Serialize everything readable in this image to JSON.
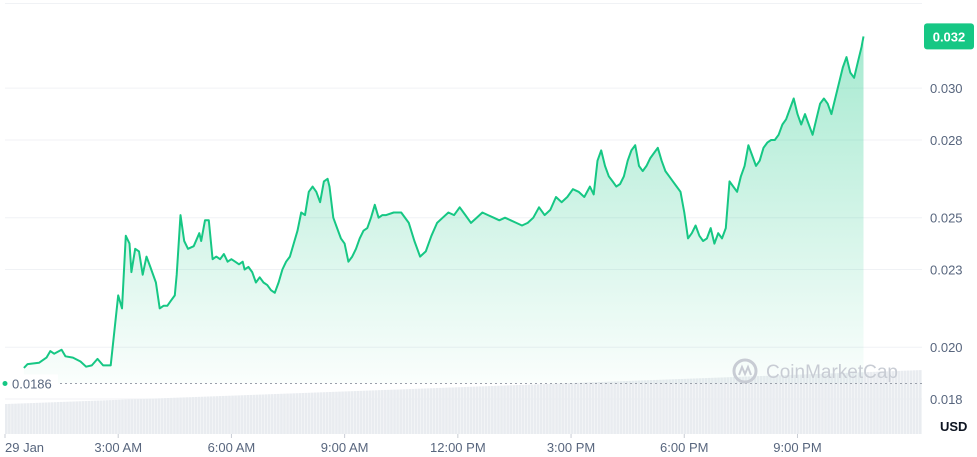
{
  "chart_data": {
    "type": "area",
    "x_ticks": [
      "29 Jan",
      "3:00 AM",
      "6:00 AM",
      "9:00 AM",
      "12:00 PM",
      "3:00 PM",
      "6:00 PM",
      "9:00 PM"
    ],
    "y_ticks": [
      "0.018",
      "0.020",
      "0.023",
      "0.025",
      "0.028",
      "0.030"
    ],
    "y_unit": "USD",
    "ylim": [
      0.01665,
      0.03325
    ],
    "x_range_hours": [
      0,
      24.3
    ],
    "open_price": 0.0186,
    "open_price_label": "0.0186",
    "current_price_label": "0.032",
    "watermark": "CoinMarketCap",
    "grid": "horizontal",
    "colors": {
      "line": "#16c784",
      "fill": "#16c784",
      "reference": "#9aa0ab",
      "volume": "#e9ecf0",
      "grid": "#f0f2f5"
    },
    "price_series": [
      [
        0.5,
        0.0192
      ],
      [
        0.6,
        0.01935
      ],
      [
        0.9,
        0.0194
      ],
      [
        1.1,
        0.0196
      ],
      [
        1.2,
        0.01985
      ],
      [
        1.3,
        0.01975
      ],
      [
        1.5,
        0.0199
      ],
      [
        1.6,
        0.01965
      ],
      [
        1.8,
        0.0196
      ],
      [
        2.0,
        0.01945
      ],
      [
        2.15,
        0.01925
      ],
      [
        2.3,
        0.0193
      ],
      [
        2.45,
        0.01955
      ],
      [
        2.6,
        0.0193
      ],
      [
        2.8,
        0.0193
      ],
      [
        3.0,
        0.022
      ],
      [
        3.1,
        0.0215
      ],
      [
        3.2,
        0.0243
      ],
      [
        3.3,
        0.024
      ],
      [
        3.35,
        0.0229
      ],
      [
        3.45,
        0.0238
      ],
      [
        3.55,
        0.0237
      ],
      [
        3.65,
        0.0228
      ],
      [
        3.75,
        0.0235
      ],
      [
        3.85,
        0.0231
      ],
      [
        4.0,
        0.0225
      ],
      [
        4.1,
        0.0215
      ],
      [
        4.2,
        0.0216
      ],
      [
        4.3,
        0.0216
      ],
      [
        4.4,
        0.0218
      ],
      [
        4.5,
        0.022
      ],
      [
        4.55,
        0.0228
      ],
      [
        4.65,
        0.0251
      ],
      [
        4.75,
        0.0241
      ],
      [
        4.85,
        0.0238
      ],
      [
        5.0,
        0.0239
      ],
      [
        5.15,
        0.0244
      ],
      [
        5.2,
        0.0241
      ],
      [
        5.3,
        0.0249
      ],
      [
        5.4,
        0.0249
      ],
      [
        5.5,
        0.0234
      ],
      [
        5.6,
        0.0235
      ],
      [
        5.7,
        0.0234
      ],
      [
        5.8,
        0.0236
      ],
      [
        5.9,
        0.0233
      ],
      [
        6.0,
        0.0234
      ],
      [
        6.1,
        0.0233
      ],
      [
        6.2,
        0.0232
      ],
      [
        6.3,
        0.0233
      ],
      [
        6.35,
        0.023
      ],
      [
        6.45,
        0.0231
      ],
      [
        6.55,
        0.0229
      ],
      [
        6.65,
        0.0225
      ],
      [
        6.75,
        0.0227
      ],
      [
        6.85,
        0.0225
      ],
      [
        6.95,
        0.0224
      ],
      [
        7.05,
        0.0222
      ],
      [
        7.15,
        0.0221
      ],
      [
        7.25,
        0.0225
      ],
      [
        7.35,
        0.023
      ],
      [
        7.45,
        0.0233
      ],
      [
        7.55,
        0.0235
      ],
      [
        7.65,
        0.024
      ],
      [
        7.75,
        0.0245
      ],
      [
        7.85,
        0.0252
      ],
      [
        7.95,
        0.0251
      ],
      [
        8.05,
        0.026
      ],
      [
        8.15,
        0.0262
      ],
      [
        8.25,
        0.026
      ],
      [
        8.35,
        0.0256
      ],
      [
        8.45,
        0.0264
      ],
      [
        8.55,
        0.0265
      ],
      [
        8.6,
        0.0262
      ],
      [
        8.7,
        0.025
      ],
      [
        8.8,
        0.0246
      ],
      [
        8.9,
        0.0242
      ],
      [
        9.0,
        0.024
      ],
      [
        9.1,
        0.0233
      ],
      [
        9.2,
        0.0235
      ],
      [
        9.3,
        0.0238
      ],
      [
        9.4,
        0.0242
      ],
      [
        9.5,
        0.0245
      ],
      [
        9.6,
        0.0246
      ],
      [
        9.7,
        0.025
      ],
      [
        9.8,
        0.0255
      ],
      [
        9.9,
        0.025
      ],
      [
        10.0,
        0.0251
      ],
      [
        10.1,
        0.0251
      ],
      [
        10.3,
        0.0252
      ],
      [
        10.5,
        0.0252
      ],
      [
        10.7,
        0.0248
      ],
      [
        10.85,
        0.0241
      ],
      [
        11.0,
        0.0235
      ],
      [
        11.15,
        0.0237
      ],
      [
        11.3,
        0.0243
      ],
      [
        11.45,
        0.0248
      ],
      [
        11.6,
        0.025
      ],
      [
        11.75,
        0.0252
      ],
      [
        11.9,
        0.0251
      ],
      [
        12.05,
        0.0254
      ],
      [
        12.2,
        0.0251
      ],
      [
        12.35,
        0.0248
      ],
      [
        12.5,
        0.025
      ],
      [
        12.65,
        0.0252
      ],
      [
        12.8,
        0.0251
      ],
      [
        12.95,
        0.025
      ],
      [
        13.1,
        0.0249
      ],
      [
        13.25,
        0.025
      ],
      [
        13.4,
        0.0249
      ],
      [
        13.55,
        0.0248
      ],
      [
        13.7,
        0.0247
      ],
      [
        13.85,
        0.0248
      ],
      [
        14.0,
        0.025
      ],
      [
        14.15,
        0.0254
      ],
      [
        14.3,
        0.0251
      ],
      [
        14.45,
        0.0253
      ],
      [
        14.6,
        0.0258
      ],
      [
        14.75,
        0.0256
      ],
      [
        14.9,
        0.0258
      ],
      [
        15.05,
        0.0261
      ],
      [
        15.2,
        0.026
      ],
      [
        15.35,
        0.0258
      ],
      [
        15.5,
        0.0262
      ],
      [
        15.6,
        0.0259
      ],
      [
        15.7,
        0.0272
      ],
      [
        15.8,
        0.0276
      ],
      [
        15.9,
        0.027
      ],
      [
        16.0,
        0.0266
      ],
      [
        16.1,
        0.0264
      ],
      [
        16.2,
        0.0262
      ],
      [
        16.3,
        0.0263
      ],
      [
        16.4,
        0.0266
      ],
      [
        16.5,
        0.0272
      ],
      [
        16.6,
        0.0276
      ],
      [
        16.7,
        0.0278
      ],
      [
        16.8,
        0.027
      ],
      [
        16.9,
        0.0268
      ],
      [
        17.0,
        0.027
      ],
      [
        17.1,
        0.0273
      ],
      [
        17.2,
        0.0275
      ],
      [
        17.3,
        0.0277
      ],
      [
        17.4,
        0.0272
      ],
      [
        17.5,
        0.0268
      ],
      [
        17.6,
        0.0266
      ],
      [
        17.7,
        0.0264
      ],
      [
        17.8,
        0.0262
      ],
      [
        17.9,
        0.026
      ],
      [
        18.0,
        0.0252
      ],
      [
        18.1,
        0.0242
      ],
      [
        18.2,
        0.0244
      ],
      [
        18.3,
        0.0247
      ],
      [
        18.4,
        0.0243
      ],
      [
        18.5,
        0.0241
      ],
      [
        18.6,
        0.0242
      ],
      [
        18.7,
        0.0246
      ],
      [
        18.8,
        0.024
      ],
      [
        18.9,
        0.0244
      ],
      [
        19.0,
        0.0242
      ],
      [
        19.1,
        0.0246
      ],
      [
        19.2,
        0.0264
      ],
      [
        19.3,
        0.0262
      ],
      [
        19.4,
        0.026
      ],
      [
        19.5,
        0.0266
      ],
      [
        19.6,
        0.027
      ],
      [
        19.7,
        0.0278
      ],
      [
        19.8,
        0.0274
      ],
      [
        19.9,
        0.027
      ],
      [
        20.0,
        0.0272
      ],
      [
        20.1,
        0.0277
      ],
      [
        20.2,
        0.0279
      ],
      [
        20.3,
        0.028
      ],
      [
        20.4,
        0.028
      ],
      [
        20.5,
        0.0282
      ],
      [
        20.6,
        0.0286
      ],
      [
        20.7,
        0.0288
      ],
      [
        20.8,
        0.0292
      ],
      [
        20.9,
        0.0296
      ],
      [
        21.0,
        0.029
      ],
      [
        21.1,
        0.0286
      ],
      [
        21.2,
        0.029
      ],
      [
        21.3,
        0.0286
      ],
      [
        21.4,
        0.0282
      ],
      [
        21.5,
        0.0288
      ],
      [
        21.6,
        0.0294
      ],
      [
        21.7,
        0.0296
      ],
      [
        21.8,
        0.0294
      ],
      [
        21.9,
        0.029
      ],
      [
        22.0,
        0.0296
      ],
      [
        22.1,
        0.0302
      ],
      [
        22.2,
        0.0308
      ],
      [
        22.3,
        0.0312
      ],
      [
        22.4,
        0.0306
      ],
      [
        22.5,
        0.0304
      ],
      [
        22.6,
        0.031
      ],
      [
        22.7,
        0.0316
      ],
      [
        22.75,
        0.032
      ]
    ]
  }
}
